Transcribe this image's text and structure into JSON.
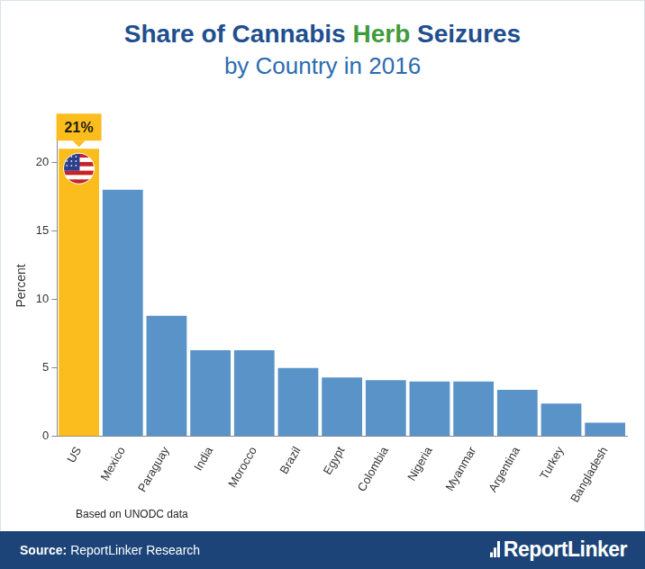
{
  "chart_data": {
    "type": "bar",
    "title": "Share of Cannabis Herb Seizures",
    "title_highlight": "Herb",
    "subtitle": "by Country in 2016",
    "y_label": "Percent",
    "categories": [
      "US",
      "Mexico",
      "Paraguay",
      "India",
      "Morocco",
      "Brazil",
      "Egypt",
      "Colombia",
      "Nigeria",
      "Myanmar",
      "Argentina",
      "Turkey",
      "Bangladesh"
    ],
    "values": [
      21,
      18,
      8.8,
      6.3,
      6.3,
      5,
      4.3,
      4.1,
      4,
      4,
      3.4,
      2.4,
      1
    ],
    "colors": [
      "#fbbd1d",
      "#5a93c8",
      "#5a93c8",
      "#5a93c8",
      "#5a93c8",
      "#5a93c8",
      "#5a93c8",
      "#5a93c8",
      "#5a93c8",
      "#5a93c8",
      "#5a93c8",
      "#5a93c8",
      "#5a93c8"
    ],
    "ylim": [
      0,
      22
    ],
    "yticks": [
      0,
      5,
      10,
      15,
      20
    ],
    "grid": false,
    "annotations": [
      {
        "x": "US",
        "y": 21,
        "text": "21%"
      }
    ],
    "note": "Based on UNODC data",
    "source_label": "Source:",
    "source": "ReportLinker Research",
    "brand": "ReportLinker"
  }
}
